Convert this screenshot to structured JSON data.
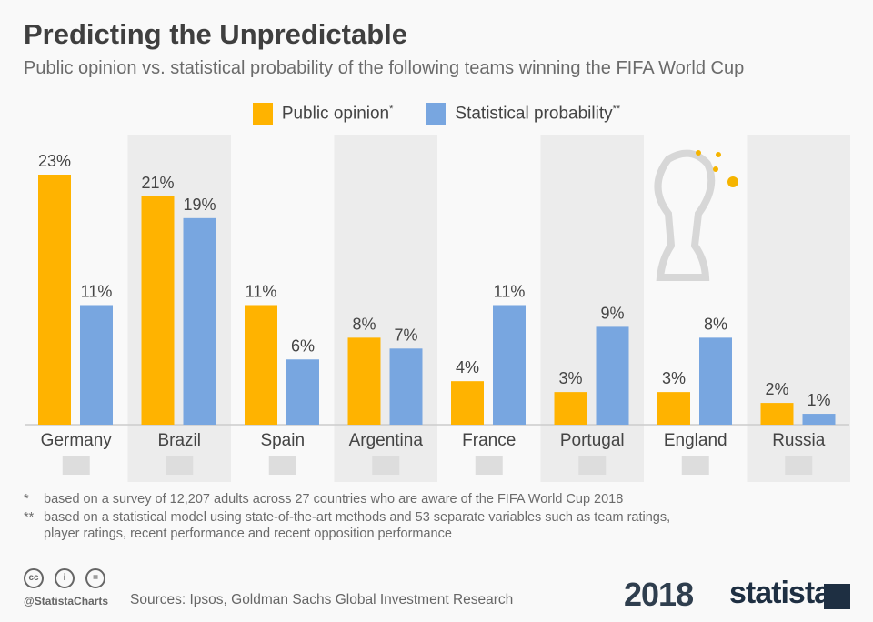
{
  "header": {
    "title": "Predicting the Unpredictable",
    "subtitle": "Public opinion vs. statistical probability of the following teams winning the FIFA World Cup"
  },
  "chart_data": {
    "type": "bar",
    "categories": [
      "Germany",
      "Brazil",
      "Spain",
      "Argentina",
      "France",
      "Portugal",
      "England",
      "Russia"
    ],
    "series": [
      {
        "name": "Public opinion",
        "marker": "*",
        "color": "#ffb300",
        "values": [
          23,
          21,
          11,
          8,
          4,
          3,
          3,
          2
        ]
      },
      {
        "name": "Statistical probability",
        "marker": "**",
        "color": "#78a6e0",
        "values": [
          11,
          19,
          6,
          7,
          11,
          9,
          8,
          1
        ]
      }
    ],
    "value_suffix": "%",
    "ylim": [
      0,
      25
    ],
    "grid": false,
    "legend_position": "top"
  },
  "footnotes": [
    {
      "marker": "*",
      "text": "based on a survey of 12,207 adults across 27 countries who are aware of the FIFA World Cup 2018"
    },
    {
      "marker": "**",
      "text": "based on a statistical model using state-of-the-art methods and 53 separate variables such as team ratings,",
      "text2": "player ratings, recent performance and recent opposition performance"
    }
  ],
  "footer": {
    "handle": "@StatistaCharts",
    "source": "Sources: Ipsos, Goldman Sachs Global Investment Research",
    "year_logo": "2018",
    "brand": "statista"
  }
}
